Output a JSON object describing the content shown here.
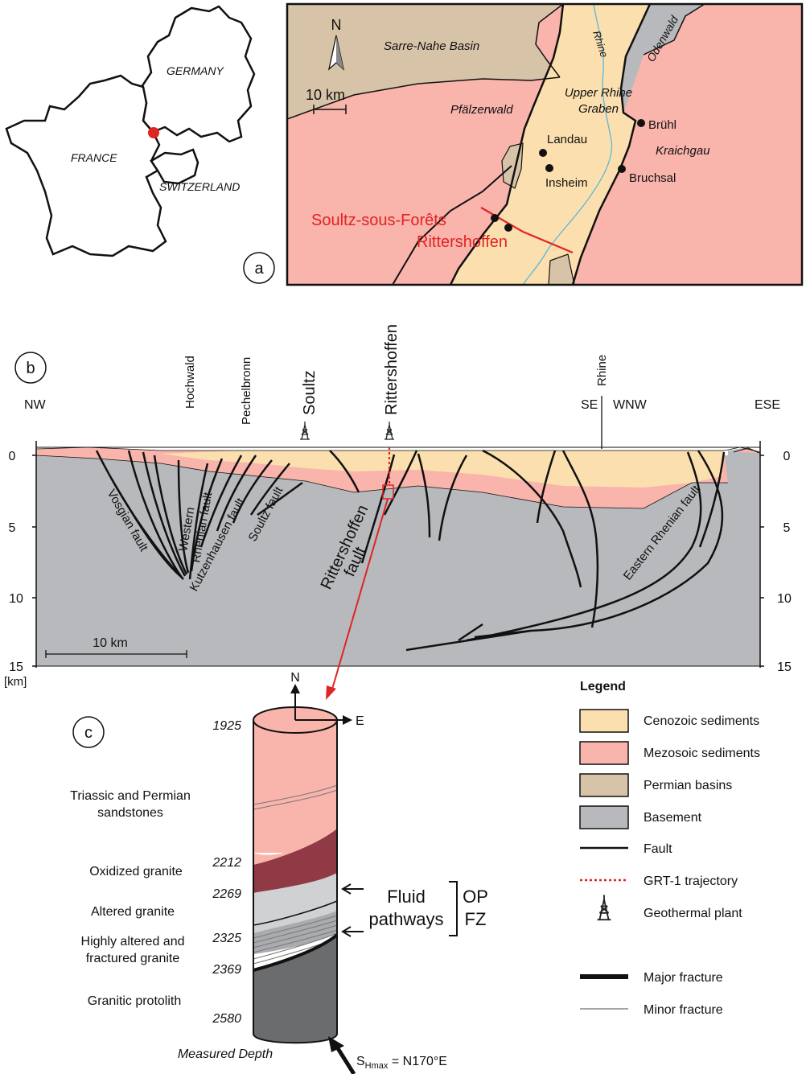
{
  "colors": {
    "cenozoic": "#fbdfae",
    "mesozoic": "#f9b4ac",
    "permian": "#d7c4a8",
    "basement": "#b7b9bc",
    "accent_red": "#e02424",
    "oxidized": "#8f3a44",
    "altered": "#cfd1d3",
    "protolith": "#6b6c6e",
    "river": "#5bb8d8"
  },
  "panel_a": {
    "label": "a",
    "countries": {
      "germany": "GERMANY",
      "france": "FRANCE",
      "switzerland": "SWITZERLAND"
    },
    "north": "N",
    "scale": "10 km",
    "regions": {
      "sarre": "Sarre-Nahe Basin",
      "odenwald": "Odenwald",
      "rhine": "Rhine",
      "graben": [
        "Upper Rhine",
        "Graben"
      ],
      "pfalzerwald": "Pfälzerwald",
      "kraichgau": "Kraichgau"
    },
    "towns": [
      "Brühl",
      "Landau",
      "Insheim",
      "Bruchsal"
    ],
    "sites": [
      "Soultz-sous-Forêts",
      "Rittershoffen"
    ]
  },
  "panel_b": {
    "label": "b",
    "orientation": {
      "nw": "NW",
      "se": "SE",
      "wnw": "WNW",
      "ese": "ESE"
    },
    "top_labels": {
      "hochwald": "Hochwald",
      "pechelbronn": "Pechelbronn",
      "soultz": "Soultz",
      "rittershoffen": "Rittershoffen",
      "rhine": "Rhine"
    },
    "depth_ticks": [
      "0",
      "5",
      "10",
      "15"
    ],
    "unit": "[km]",
    "scale": "10 km",
    "faults": {
      "vosgian": "Vosgian fault",
      "western": [
        "Western",
        "Rhenian fault"
      ],
      "kutzenhausen": "Kutzenhausen fault",
      "soultz": "Soultz fault",
      "rittershoffen": [
        "Rittershoffen",
        "fault"
      ],
      "eastern": "Eastern Rhenian fault"
    }
  },
  "panel_c": {
    "label": "c",
    "compass": {
      "n": "N",
      "e": "E"
    },
    "depths": [
      "1925",
      "2212",
      "2269",
      "2325",
      "2369",
      "2580"
    ],
    "units": {
      "triassic": [
        "Triassic and Permian",
        "sandstones"
      ],
      "oxidized": "Oxidized granite",
      "altered": "Altered granite",
      "highly": [
        "Highly altered and",
        "fractured granite"
      ],
      "protolith": "Granitic protolith"
    },
    "fluid": [
      "Fluid",
      "pathways"
    ],
    "op": "OP",
    "fz": "FZ",
    "measured_depth": "Measured Depth",
    "stress": {
      "s": "S",
      "sub": "Hmax",
      "rest": " = N170°E"
    }
  },
  "legend": {
    "title": "Legend",
    "items": [
      "Cenozoic sediments",
      "Mezosoic sediments",
      "Permian basins",
      "Basement",
      "Fault",
      "GRT-1 trajectory",
      "Geothermal plant",
      "Major fracture",
      "Minor fracture"
    ]
  }
}
